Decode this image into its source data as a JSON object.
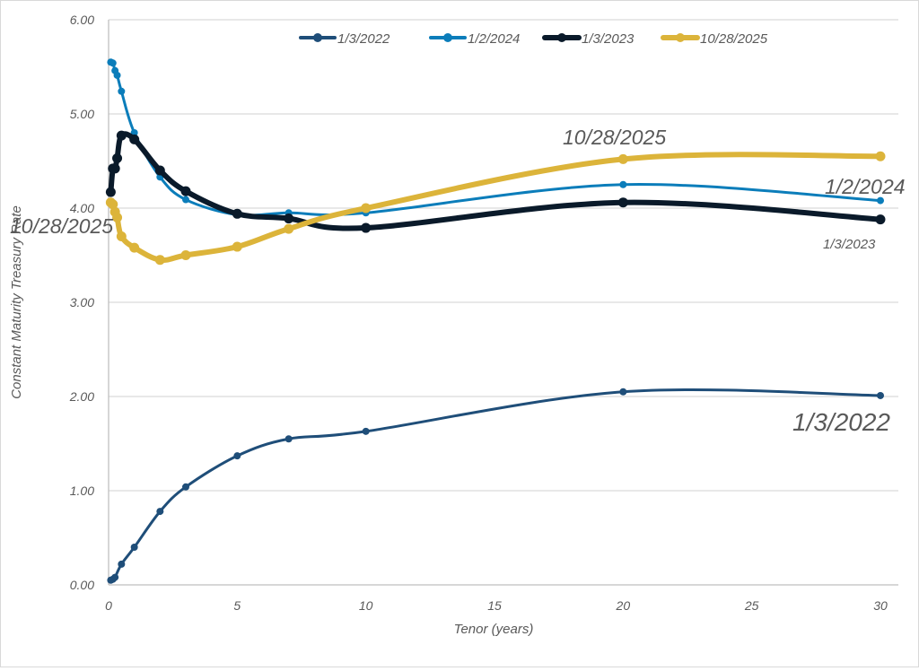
{
  "chart_data": {
    "type": "line",
    "title": "",
    "xlabel": "Tenor (years)",
    "ylabel": "Constant Maturity Treasury Rate",
    "xlim": [
      0,
      30
    ],
    "ylim": [
      0,
      6
    ],
    "xticks": [
      "0",
      "5",
      "10",
      "15",
      "20",
      "25",
      "30"
    ],
    "yticks": [
      "0.00",
      "1.00",
      "2.00",
      "3.00",
      "4.00",
      "5.00",
      "6.00"
    ],
    "grid": "horizontal",
    "legend_position": "top",
    "x": [
      0.0833,
      0.1667,
      0.25,
      0.3333,
      0.5,
      1,
      2,
      3,
      5,
      7,
      10,
      20,
      30
    ],
    "series": [
      {
        "name": "1/3/2022",
        "color": "#1f4e79",
        "width": 3,
        "values": [
          0.05,
          0.06,
          0.08,
          null,
          0.22,
          0.4,
          0.78,
          1.04,
          1.37,
          1.55,
          1.63,
          2.05,
          2.01
        ]
      },
      {
        "name": "1/2/2024",
        "color": "#0b7dba",
        "width": 3,
        "values": [
          5.55,
          5.54,
          5.46,
          5.41,
          5.24,
          4.8,
          4.33,
          4.09,
          3.93,
          3.95,
          3.95,
          4.25,
          4.08
        ]
      },
      {
        "name": "1/3/2023",
        "color": "#0a1a2a",
        "width": 6,
        "values": [
          4.17,
          4.42,
          4.42,
          4.53,
          4.77,
          4.73,
          4.4,
          4.18,
          3.94,
          3.89,
          3.79,
          4.06,
          3.88
        ]
      },
      {
        "name": "10/28/2025",
        "color": "#dcb43a",
        "width": 6,
        "values": [
          4.06,
          4.04,
          3.96,
          3.9,
          3.7,
          3.58,
          3.45,
          3.5,
          3.59,
          3.78,
          4.0,
          4.52,
          4.55
        ]
      }
    ],
    "annotations": [
      {
        "text": "10/28/2025",
        "series": "10/28/2025",
        "at": "20y"
      },
      {
        "text": "1/2/2024",
        "series": "1/2/2024",
        "at": "30y"
      },
      {
        "text": "1/3/2023",
        "series": "1/3/2023",
        "at": "30y"
      },
      {
        "text": "1/3/2022",
        "series": "1/3/2022",
        "at": "30y"
      },
      {
        "text": "10/28/2025",
        "series": "10/28/2025",
        "at": "1mo"
      }
    ]
  }
}
